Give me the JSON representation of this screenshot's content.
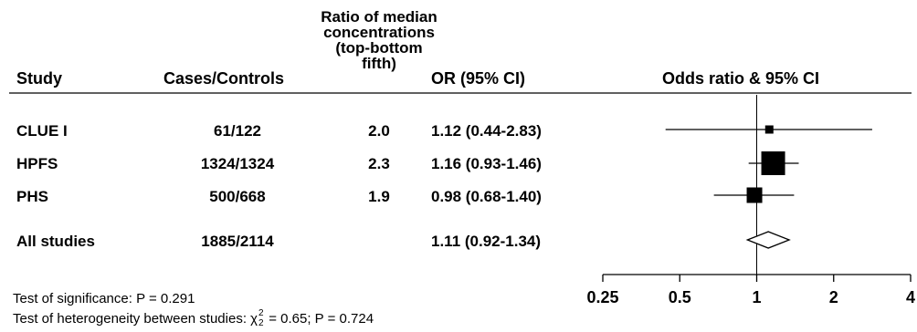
{
  "chart_data": {
    "type": "forest",
    "headers": {
      "study": "Study",
      "cases_controls": "Cases/Controls",
      "ratio_line1": "Ratio of median",
      "ratio_line2": "concentrations",
      "ratio_line3": "(top-bottom",
      "ratio_line4": "fifth)",
      "or": "OR (95% CI)",
      "plot": "Odds ratio & 95% CI"
    },
    "rows": [
      {
        "study": "CLUE I",
        "cases_controls": "61/122",
        "ratio": "2.0",
        "or_text": "1.12 (0.44-2.83)",
        "or": 1.12,
        "lo": 0.44,
        "hi": 2.83,
        "weight": 0.15,
        "kind": "square"
      },
      {
        "study": "HPFS",
        "cases_controls": "1324/1324",
        "ratio": "2.3",
        "or_text": "1.16 (0.93-1.46)",
        "or": 1.16,
        "lo": 0.93,
        "hi": 1.46,
        "weight": 1.0,
        "kind": "square"
      },
      {
        "study": "PHS",
        "cases_controls": "500/668",
        "ratio": "1.9",
        "or_text": "0.98 (0.68-1.40)",
        "or": 0.98,
        "lo": 0.68,
        "hi": 1.4,
        "weight": 0.55,
        "kind": "square"
      },
      {
        "study": "All studies",
        "cases_controls": "1885/2114",
        "ratio": "",
        "or_text": "1.11 (0.92-1.34)",
        "or": 1.11,
        "lo": 0.92,
        "hi": 1.34,
        "weight": 1.0,
        "kind": "diamond"
      }
    ],
    "x_axis": {
      "scale": "log",
      "range": [
        0.25,
        4
      ],
      "ticks": [
        0.25,
        0.5,
        1,
        2,
        4
      ],
      "tick_labels": [
        "0.25",
        "0.5",
        "1",
        "2",
        "4"
      ],
      "reference_line": 1
    },
    "footnotes": {
      "significance": "Test of significance: P = 0.291",
      "heterogeneity_prefix": "Test of heterogeneity between studies: ",
      "chi_symbol": "χ",
      "chi_sup": "2",
      "chi_sub": "2",
      "heterogeneity_suffix": " = 0.65; P = 0.724"
    }
  }
}
